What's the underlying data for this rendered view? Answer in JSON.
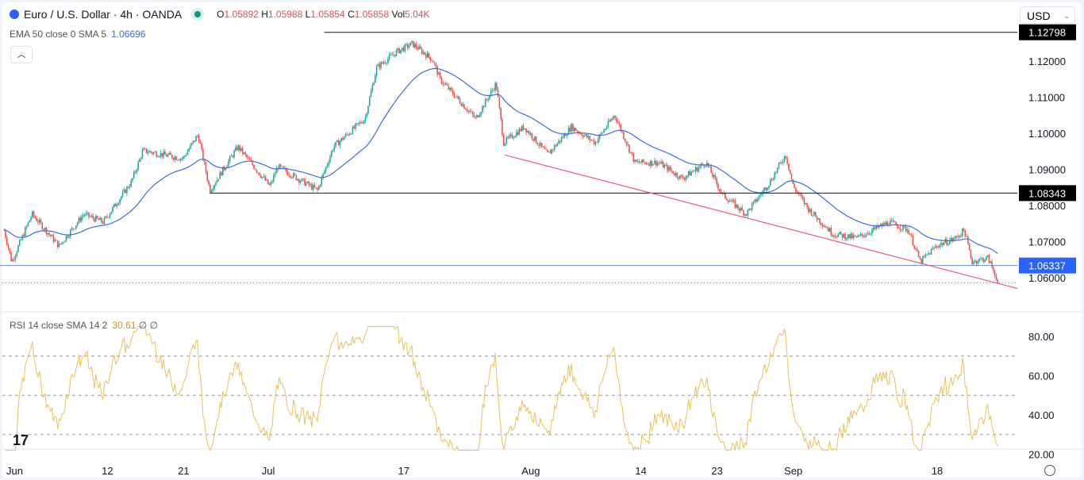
{
  "header": {
    "symbol": "Euro / U.S. Dollar · 4h · OANDA",
    "o_label": "O",
    "o": "1.05892",
    "h_label": "H",
    "h": "1.05988",
    "l_label": "L",
    "l": "1.05854",
    "c_label": "C",
    "c": "1.05858",
    "vol_label": "Vol",
    "vol": "5.04K",
    "currency": "USD"
  },
  "indicators": {
    "ema_label": "EMA 50 close 0 SMA 5",
    "ema_value": "1.06696",
    "rsi_label": "RSI 14 close SMA 14 2",
    "rsi_value": "30.61",
    "rsi_extra": "∅ ∅"
  },
  "colors": {
    "up": "#26a69a",
    "down": "#ef5350",
    "ema": "#3d6fd6",
    "rsi": "#e8c25a",
    "trend": "#e06080",
    "support": "#6f8fd0"
  },
  "chart_data": {
    "type": "candlestick",
    "title": "Euro / U.S. Dollar · 4h · OANDA",
    "ylim": [
      1.055,
      1.131
    ],
    "y_ticks": [
      "1.12000",
      "1.11000",
      "1.10000",
      "1.09000",
      "1.08000",
      "1.07000",
      "1.06000"
    ],
    "x_ticks": [
      {
        "label": "Jun",
        "day": 0
      },
      {
        "label": "12",
        "day": 11
      },
      {
        "label": "21",
        "day": 20
      },
      {
        "label": "Jul",
        "day": 30
      },
      {
        "label": "17",
        "day": 46
      },
      {
        "label": "Aug",
        "day": 61
      },
      {
        "label": "14",
        "day": 74
      },
      {
        "label": "23",
        "day": 83
      },
      {
        "label": "Sep",
        "day": 92
      },
      {
        "label": "18",
        "day": 109
      }
    ],
    "levels": [
      {
        "label": "1.12798",
        "price": 1.12798,
        "from_day": 36.6
      },
      {
        "label": "1.08343",
        "price": 1.08343,
        "from_day": 23.1
      },
      {
        "label": "1.06337",
        "price": 1.06337,
        "from_day": -1.7
      }
    ],
    "last_price": 1.05858,
    "trendline": [
      [
        57.9,
        1.094
      ],
      [
        118.5,
        1.057
      ]
    ],
    "close_path": [
      [
        -1.2,
        1.0732
      ],
      [
        -0.3,
        1.0644
      ],
      [
        2.1,
        1.0776
      ],
      [
        5.3,
        1.0688
      ],
      [
        8.2,
        1.0776
      ],
      [
        10.5,
        1.0754
      ],
      [
        13.8,
        1.0864
      ],
      [
        15.2,
        1.0952
      ],
      [
        19.9,
        1.093
      ],
      [
        21.7,
        1.0996
      ],
      [
        23.1,
        1.0842
      ],
      [
        26.4,
        1.0963
      ],
      [
        30.2,
        1.0853
      ],
      [
        31.1,
        1.0908
      ],
      [
        35.8,
        1.0842
      ],
      [
        37.7,
        1.0963
      ],
      [
        41.4,
        1.104
      ],
      [
        42.8,
        1.1182
      ],
      [
        45.2,
        1.1226
      ],
      [
        47.0,
        1.1248
      ],
      [
        49.4,
        1.1204
      ],
      [
        50.3,
        1.1149
      ],
      [
        54.5,
        1.104
      ],
      [
        56.9,
        1.1138
      ],
      [
        57.8,
        1.0974
      ],
      [
        60.2,
        1.1018
      ],
      [
        63.0,
        1.0941
      ],
      [
        65.8,
        1.1018
      ],
      [
        68.6,
        1.0974
      ],
      [
        70.9,
        1.1051
      ],
      [
        73.3,
        1.0919
      ],
      [
        76.1,
        1.0919
      ],
      [
        78.9,
        1.0875
      ],
      [
        81.7,
        1.0919
      ],
      [
        83.6,
        1.0831
      ],
      [
        86.4,
        1.0776
      ],
      [
        89.2,
        1.0864
      ],
      [
        91.1,
        1.0941
      ],
      [
        92.0,
        1.0853
      ],
      [
        93.9,
        1.0787
      ],
      [
        96.7,
        1.0721
      ],
      [
        99.5,
        1.071
      ],
      [
        103.3,
        1.0754
      ],
      [
        105.6,
        1.0732
      ],
      [
        107.0,
        1.0644
      ],
      [
        108.9,
        1.0688
      ],
      [
        111.2,
        1.071
      ],
      [
        112.2,
        1.0732
      ],
      [
        113.1,
        1.0644
      ],
      [
        115.0,
        1.0655
      ],
      [
        116.2,
        1.0589
      ]
    ],
    "ema_period": 50,
    "rsi": {
      "period": 14,
      "ylim": [
        20,
        85
      ],
      "y_ticks": [
        "80.00",
        "60.00",
        "40.00",
        "20.00"
      ],
      "bands": [
        70,
        50,
        30
      ]
    }
  }
}
